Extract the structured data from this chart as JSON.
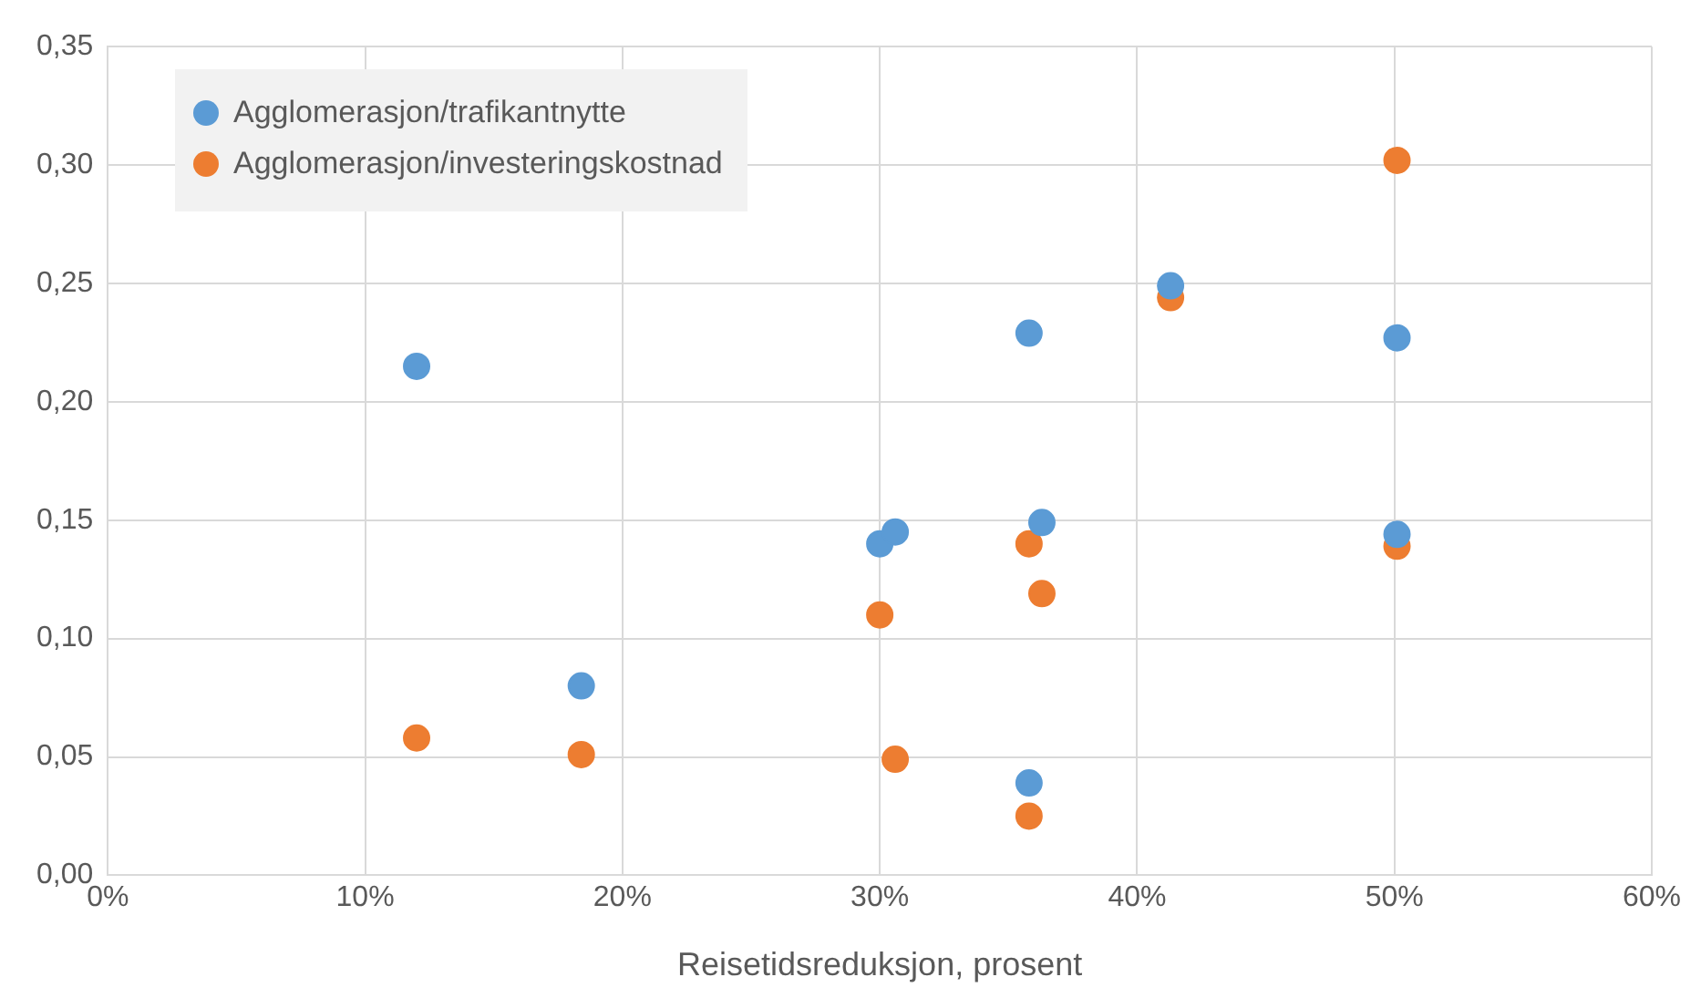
{
  "chart_data": {
    "type": "scatter",
    "xlabel": "Reisetidsreduksjon, prosent",
    "legend": "top left",
    "grid": true,
    "marker": "circle",
    "xlim": [
      0,
      60
    ],
    "xticks": [
      {
        "value": 0,
        "label": "0%"
      },
      {
        "value": 10,
        "label": "10%"
      },
      {
        "value": 20,
        "label": "20%"
      },
      {
        "value": 30,
        "label": "30%"
      },
      {
        "value": 40,
        "label": "40%"
      },
      {
        "value": 50,
        "label": "50%"
      },
      {
        "value": 60,
        "label": "60%"
      }
    ],
    "ylim": [
      0,
      0.35
    ],
    "yticks": [
      {
        "value": 0,
        "label": "0,00"
      },
      {
        "value": 0.05,
        "label": "0,05"
      },
      {
        "value": 0.1,
        "label": "0,10"
      },
      {
        "value": 0.15,
        "label": "0,15"
      },
      {
        "value": 0.2,
        "label": "0,20"
      },
      {
        "value": 0.25,
        "label": "0,25"
      },
      {
        "value": 0.3,
        "label": "0,30"
      },
      {
        "value": 0.35,
        "label": "0,35"
      }
    ],
    "series": [
      {
        "name": "Agglomerasjon/trafikantnytte",
        "color": "#5b9bd5",
        "x": [
          12,
          18.4,
          30,
          30.6,
          35.8,
          35.8,
          36.3,
          41.3,
          50.1,
          50.1
        ],
        "values": [
          0.215,
          0.08,
          0.14,
          0.145,
          0.229,
          0.039,
          0.149,
          0.249,
          0.227,
          0.144
        ]
      },
      {
        "name": "Agglomerasjon/investeringskostnad",
        "color": "#ed7d31",
        "x": [
          12,
          18.4,
          30,
          30.6,
          35.8,
          35.8,
          36.3,
          41.3,
          50.1,
          50.1
        ],
        "values": [
          0.058,
          0.051,
          0.11,
          0.049,
          0.14,
          0.025,
          0.119,
          0.244,
          0.302,
          0.139
        ]
      }
    ]
  }
}
